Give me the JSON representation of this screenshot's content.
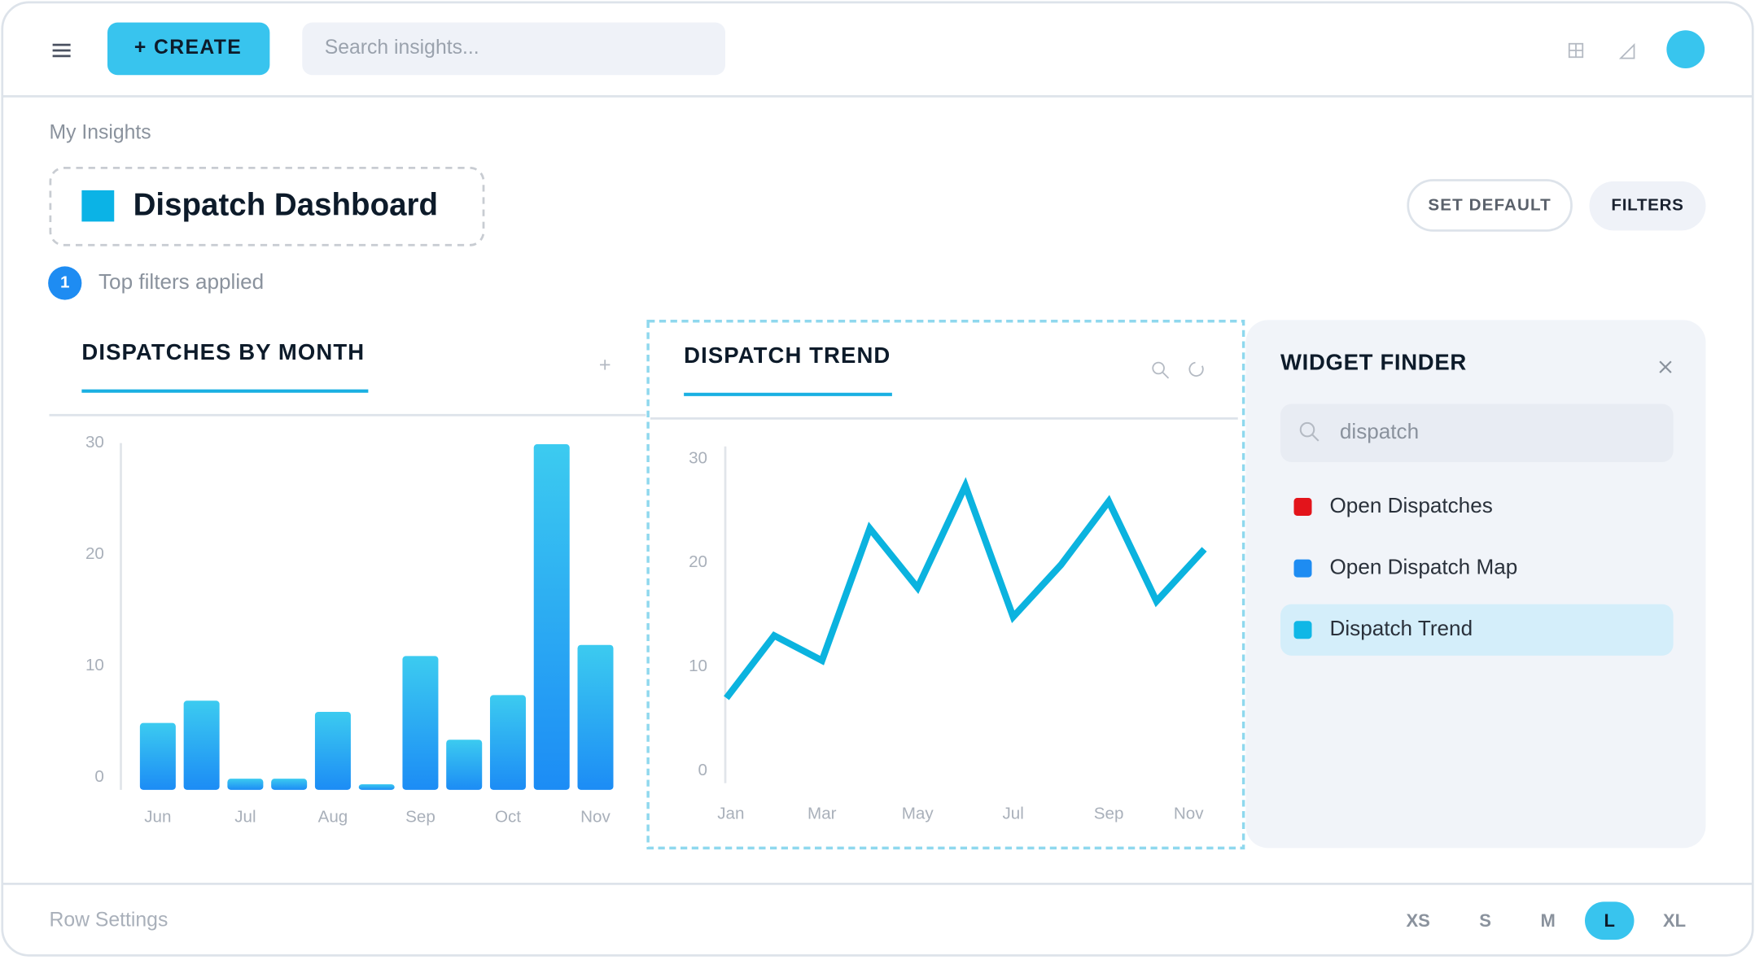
{
  "header": {
    "create_button": "+ CREATE",
    "search_placeholder": "Search insights..."
  },
  "breadcrumb": "My Insights",
  "dashboard_title": "Dispatch Dashboard",
  "buttons": [
    "SET DEFAULT",
    "FILTERS"
  ],
  "filter_count": 1,
  "filter_text": "Top filters applied",
  "chart_data": [
    {
      "type": "bar",
      "title": "DISPATCHES BY MONTH",
      "categories": [
        "Jun",
        null,
        "Jul",
        null,
        "Aug",
        null,
        "Sep",
        null,
        "Oct",
        null,
        "Nov"
      ],
      "values": [
        6,
        8,
        1,
        1,
        7,
        0.5,
        12,
        4.5,
        8.5,
        31,
        13
      ],
      "gradient": [
        "#3ccbf0",
        "#1c8cf5"
      ],
      "ylim": [
        0,
        30
      ],
      "yticks": [
        0,
        10,
        20,
        30
      ]
    },
    {
      "type": "line",
      "title": "DISPATCH TREND",
      "categories": [
        "Jan",
        null,
        "Mar",
        null,
        "May",
        null,
        "Jul",
        null,
        "Sep",
        null,
        "Nov"
      ],
      "values": [
        7,
        13,
        10.6,
        23.3,
        17.6,
        27.4,
        14.8,
        19.8,
        25.9,
        16.3,
        21.3
      ],
      "color": "#0bb3df",
      "ylim": [
        0,
        30
      ],
      "yticks": [
        0,
        10,
        20,
        30
      ]
    }
  ],
  "widget_finder": {
    "title": "WIDGET FINDER",
    "search_value": "dispatch",
    "items": [
      {
        "label": "Open Dispatches",
        "color": "#e3141b"
      },
      {
        "label": "Open Dispatch Map",
        "color": "#1e8cf2"
      },
      {
        "label": "Dispatch Trend",
        "color": "#10b7e6"
      }
    ],
    "selected_index": 2
  },
  "footer": {
    "label": "Row Settings",
    "sizes": [
      "XS",
      "S",
      "M",
      "L",
      "XL"
    ],
    "selected_index": 3
  }
}
